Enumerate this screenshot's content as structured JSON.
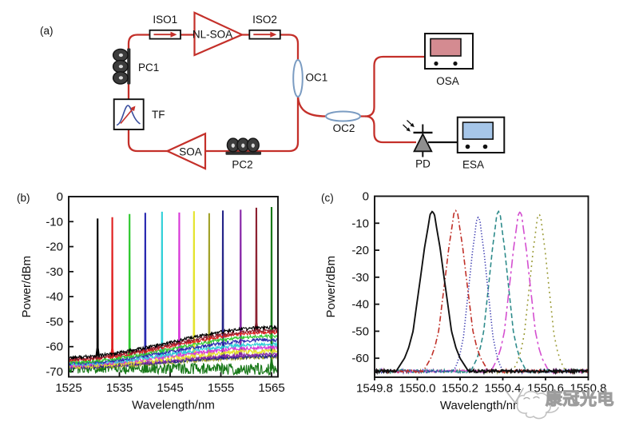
{
  "figure": {
    "panel_a_label": "(a)",
    "panel_b_label": "(b)",
    "panel_c_label": "(c)"
  },
  "diagram": {
    "labels": {
      "iso1": "ISO1",
      "nl_soa": "NL-SOA",
      "iso2": "ISO2",
      "pc1": "PC1",
      "tf": "TF",
      "soa": "SOA",
      "pc2": "PC2",
      "oc1": "OC1",
      "oc2": "OC2",
      "osa": "OSA",
      "pd": "PD",
      "esa": "ESA"
    },
    "colors": {
      "fiber_red": "#c4302a",
      "coupler_stroke": "#7b9cc2",
      "osa_screen": "#d48b91",
      "esa_screen": "#a6c6e9",
      "pd_fill": "#8f8f8f",
      "component_dark": "#2e2e2e",
      "box_stroke": "#111111"
    }
  },
  "chart_data": [
    {
      "type": "line",
      "panel": "b",
      "title": "",
      "xlabel": "Wavelength/nm",
      "ylabel": "Power/dBm",
      "xlim": [
        1525,
        1566.3
      ],
      "ylim": [
        -72.1,
        0
      ],
      "xticks": [
        1525,
        1535,
        1545,
        1555,
        1565
      ],
      "xtick_labels": [
        "1525",
        "1535",
        "1545",
        "1555",
        "1565"
      ],
      "yticks": [
        0,
        -10,
        -20,
        -30,
        -40,
        -50,
        -60,
        -70
      ],
      "ytick_labels": [
        "0",
        "-10",
        "-20",
        "-30",
        "-40",
        "-50",
        "-60",
        "-70"
      ],
      "grid": false,
      "legend": "none",
      "series": [
        {
          "name": "1530.7 nm line",
          "color": "#000000",
          "peak_nm": 1530.7,
          "peak_dbm": -9.1,
          "ase_left": -64.3,
          "ase_right": -52.3,
          "noise": 0.65
        },
        {
          "name": "1533.6 nm line",
          "color": "#e02020",
          "peak_nm": 1533.6,
          "peak_dbm": -8.6,
          "ase_left": -65.3,
          "ase_right": -54.3,
          "noise": 0.65
        },
        {
          "name": "1537.0 nm line",
          "color": "#2fc82f",
          "peak_nm": 1537.0,
          "peak_dbm": -7.3,
          "ase_left": -66.2,
          "ase_right": -55.8,
          "noise": 0.65
        },
        {
          "name": "1540.1 nm line",
          "color": "#2828b0",
          "peak_nm": 1540.1,
          "peak_dbm": -6.8,
          "ase_left": -66.7,
          "ase_right": -57.3,
          "noise": 0.65
        },
        {
          "name": "1543.4 nm line",
          "color": "#30d0d8",
          "peak_nm": 1543.4,
          "peak_dbm": -6.4,
          "ase_left": -67.1,
          "ase_right": -59.0,
          "noise": 0.7
        },
        {
          "name": "1546.8 nm line",
          "color": "#d838d8",
          "peak_nm": 1546.8,
          "peak_dbm": -6.7,
          "ase_left": -67.4,
          "ase_right": -60.3,
          "noise": 0.7
        },
        {
          "name": "1549.7 nm line",
          "color": "#e4e42c",
          "peak_nm": 1549.7,
          "peak_dbm": -6.2,
          "ase_left": -67.7,
          "ase_right": -61.7,
          "noise": 1.0
        },
        {
          "name": "1552.7 nm line",
          "color": "#a2a22a",
          "peak_nm": 1552.7,
          "peak_dbm": -7.0,
          "ase_left": -68.3,
          "ase_right": -64.3,
          "noise": 0.7
        },
        {
          "name": "1555.4 nm line",
          "color": "#242488",
          "peak_nm": 1555.4,
          "peak_dbm": -5.9,
          "ase_left": -68.1,
          "ase_right": -63.9,
          "noise": 0.7
        },
        {
          "name": "1558.9 nm line",
          "color": "#8828a8",
          "peak_nm": 1558.9,
          "peak_dbm": -5.6,
          "ase_left": -67.9,
          "ase_right": -63.2,
          "noise": 0.7
        },
        {
          "name": "1562.0 nm line",
          "color": "#8c2030",
          "peak_nm": 1562.0,
          "peak_dbm": -4.8,
          "ase_left": -64.9,
          "ase_right": -53.5,
          "noise": 0.65
        },
        {
          "name": "1565.0 nm line",
          "color": "#187818",
          "peak_nm": 1565.0,
          "peak_dbm": -4.5,
          "ase_left": -68.4,
          "ase_right": -69.0,
          "noise": 2.3
        }
      ]
    },
    {
      "type": "line",
      "panel": "c",
      "title": "",
      "xlabel": "Wavelength/nm",
      "ylabel": "Power/dBm",
      "xlim": [
        1549.8,
        1550.8
      ],
      "ylim": [
        -67.1,
        0
      ],
      "xticks": [
        1549.8,
        1550.0,
        1550.2,
        1550.4,
        1550.6,
        1550.8
      ],
      "xtick_labels": [
        "1549.8",
        "1550.0",
        "1550.2",
        "1550.4",
        "1550.6",
        "1550.8"
      ],
      "yticks": [
        0,
        -10,
        -20,
        -30,
        -40,
        -50,
        -60
      ],
      "ytick_labels": [
        "0",
        "-10",
        "-20",
        "-30",
        "-40",
        "-50",
        "-60"
      ],
      "grid": false,
      "legend": "none",
      "series": [
        {
          "name": "1550.07 nm",
          "color": "#111111",
          "style": "solid",
          "peak_nm": 1550.07,
          "peak_dbm": -5.6,
          "base": -64.8,
          "halfwidth": 0.13
        },
        {
          "name": "1550.18 nm",
          "color": "#c03028",
          "style": "dashdot",
          "peak_nm": 1550.18,
          "peak_dbm": -5.3,
          "base": -64.8,
          "halfwidth": 0.115
        },
        {
          "name": "1550.29 nm",
          "color": "#3b3bb0",
          "style": "dotted",
          "peak_nm": 1550.285,
          "peak_dbm": -7.8,
          "base": -64.8,
          "halfwidth": 0.1
        },
        {
          "name": "1550.38 nm",
          "color": "#2e8b8b",
          "style": "dashed",
          "peak_nm": 1550.38,
          "peak_dbm": -5.6,
          "base": -64.8,
          "halfwidth": 0.1
        },
        {
          "name": "1550.48 nm",
          "color": "#d44fd0",
          "style": "longdashdot",
          "peak_nm": 1550.48,
          "peak_dbm": -5.8,
          "base": -64.8,
          "halfwidth": 0.105
        },
        {
          "name": "1550.57 nm",
          "color": "#9a9a35",
          "style": "sparsedot",
          "peak_nm": 1550.57,
          "peak_dbm": -6.6,
          "base": -64.8,
          "halfwidth": 0.1
        }
      ]
    }
  ],
  "watermark": {
    "text": "康冠光电"
  }
}
